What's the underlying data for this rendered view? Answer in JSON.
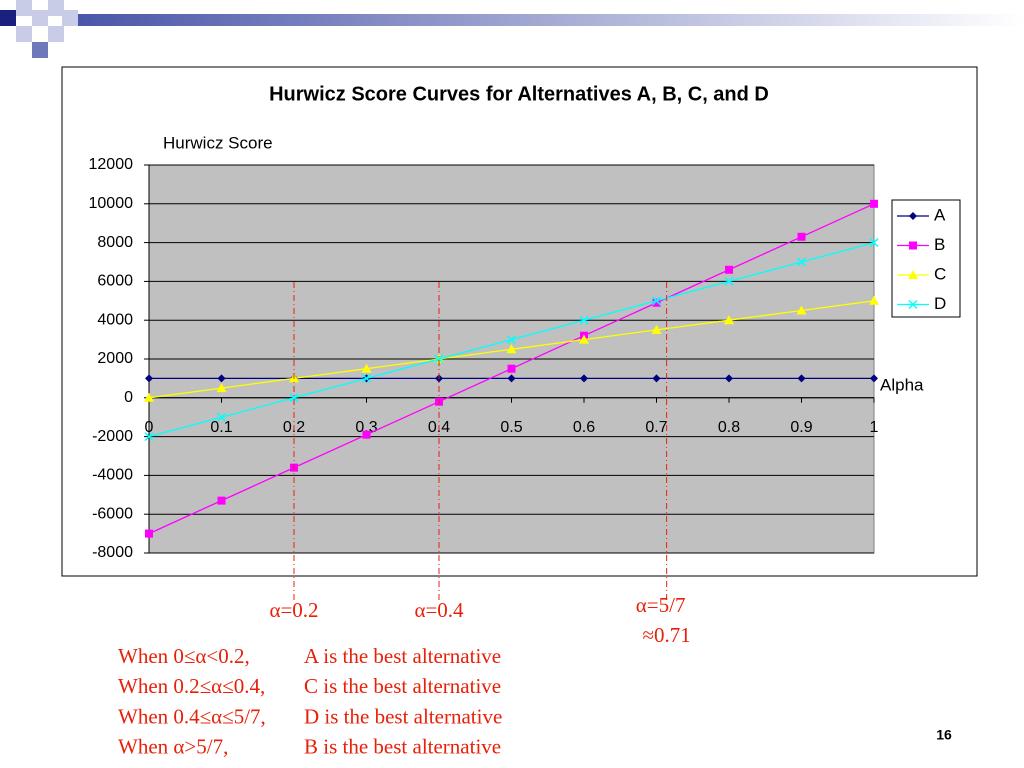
{
  "chart_data": {
    "type": "line",
    "title": "Hurwicz Score Curves for Alternatives A, B, C, and D",
    "y_label": "Hurwicz Score",
    "x_label": "Alpha",
    "x": [
      0,
      0.1,
      0.2,
      0.3,
      0.4,
      0.5,
      0.6,
      0.7,
      0.8,
      0.9,
      1
    ],
    "series": [
      {
        "name": "A",
        "color": "#000080",
        "marker": "diamond",
        "values": [
          1000,
          1000,
          1000,
          1000,
          1000,
          1000,
          1000,
          1000,
          1000,
          1000,
          1000
        ]
      },
      {
        "name": "B",
        "color": "#ff00ff",
        "marker": "square",
        "values": [
          -7000,
          -5300,
          -3600,
          -1900,
          -200,
          1500,
          3200,
          4900,
          6600,
          8300,
          10000
        ]
      },
      {
        "name": "C",
        "color": "#ffff00",
        "marker": "triangle",
        "values": [
          0,
          500,
          1000,
          1500,
          2000,
          2500,
          3000,
          3500,
          4000,
          4500,
          5000
        ]
      },
      {
        "name": "D",
        "color": "#00ffff",
        "marker": "x",
        "values": [
          -2000,
          -1000,
          0,
          1000,
          2000,
          3000,
          4000,
          5000,
          6000,
          7000,
          8000
        ]
      }
    ],
    "xlim": [
      0,
      1
    ],
    "xticks": [
      0,
      0.1,
      0.2,
      0.3,
      0.4,
      0.5,
      0.6,
      0.7,
      0.8,
      0.9,
      1
    ],
    "ylim": [
      -8000,
      12000
    ],
    "yticks": [
      -8000,
      -6000,
      -4000,
      -2000,
      0,
      2000,
      4000,
      6000,
      8000,
      10000,
      12000
    ],
    "grid": true,
    "legend": "right",
    "annotations": [
      {
        "x": 0.2,
        "label": "α=0.2"
      },
      {
        "x": 0.4,
        "label": "α=0.4"
      },
      {
        "x": 0.714,
        "label": "α=5/7",
        "sublabel": "≈0.71"
      }
    ]
  },
  "notes": [
    {
      "condition": "When 0≤α<0.2,",
      "result": "A is the best alternative"
    },
    {
      "condition": "When 0.2≤α≤0.4,",
      "result": "C is the best alternative"
    },
    {
      "condition": "When 0.4≤α≤5/7,",
      "result": "D is the best alternative"
    },
    {
      "condition": "When α>5/7,",
      "result": "B is the best alternative"
    }
  ],
  "page_number": "16"
}
